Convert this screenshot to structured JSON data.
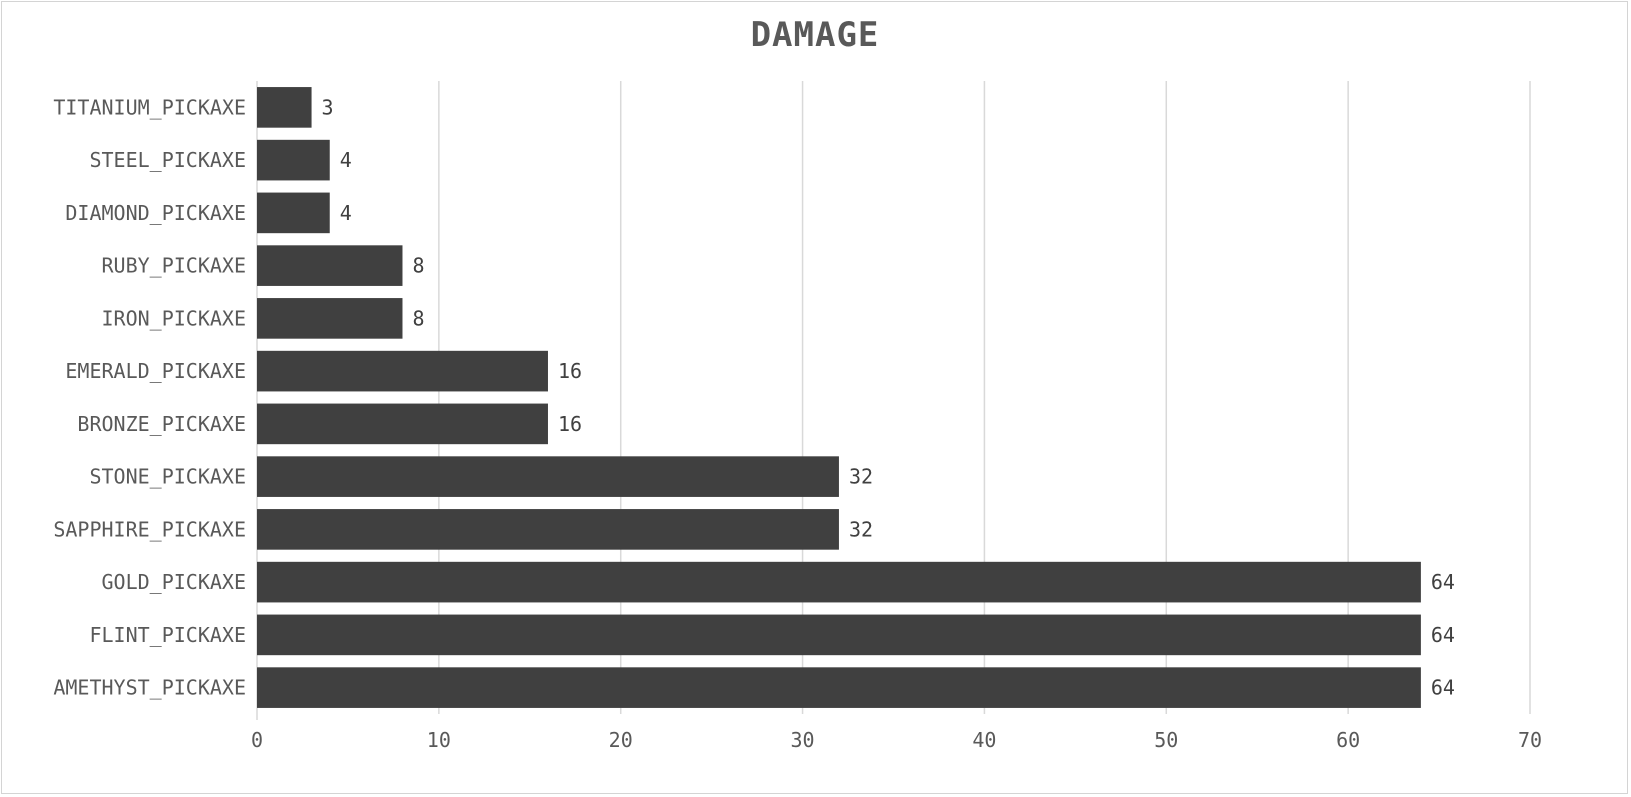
{
  "chart_data": {
    "type": "bar",
    "orientation": "horizontal",
    "title": "DAMAGE",
    "xlabel": "",
    "ylabel": "",
    "categories": [
      "TITANIUM_PICKAXE",
      "STEEL_PICKAXE",
      "DIAMOND_PICKAXE",
      "RUBY_PICKAXE",
      "IRON_PICKAXE",
      "EMERALD_PICKAXE",
      "BRONZE_PICKAXE",
      "STONE_PICKAXE",
      "SAPPHIRE_PICKAXE",
      "GOLD_PICKAXE",
      "FLINT_PICKAXE",
      "AMETHYST_PICKAXE"
    ],
    "values": [
      3,
      4,
      4,
      8,
      8,
      16,
      16,
      32,
      32,
      64,
      64,
      64
    ],
    "xlim": [
      0,
      70
    ],
    "ticks": [
      0,
      10,
      20,
      30,
      40,
      50,
      60,
      70
    ],
    "grid": true,
    "legend": "none",
    "bar_color": "#404040",
    "grid_color": "#d9d9d9",
    "text_color": "#595959"
  }
}
